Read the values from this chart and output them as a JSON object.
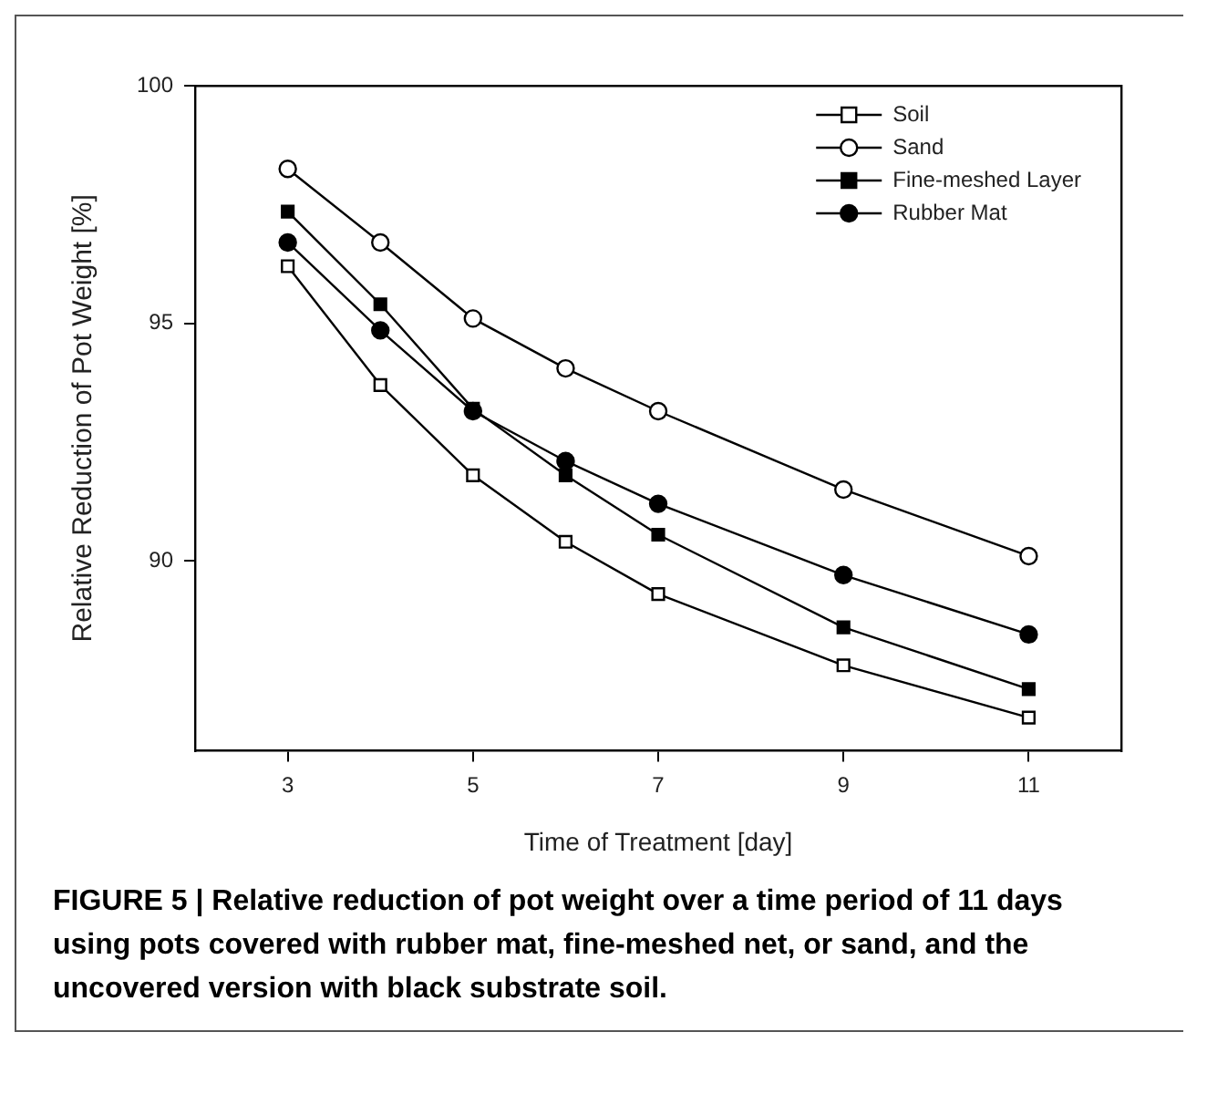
{
  "chart_data": {
    "type": "line",
    "xlabel": "Time of Treatment [day]",
    "ylabel": "Relative Reduction of Pot Weight [%]",
    "annotations": [
      "FIGURE 5 | Relative reduction of pot weight over a time period of 11 days using pots covered with rubber mat, fine-meshed net, or sand, and the uncovered version with black substrate soil."
    ],
    "x": [
      3,
      4,
      5,
      6,
      7,
      9,
      11
    ],
    "xlim": [
      2,
      12
    ],
    "xticks": [
      3,
      5,
      7,
      9,
      11
    ],
    "ylim": [
      86,
      100
    ],
    "yticks": [
      90,
      95,
      100
    ],
    "grid": false,
    "legend": "top right",
    "line_style": "solid",
    "series": [
      {
        "name": "Soil",
        "color": "#000000",
        "marker": "square",
        "values": [
          96.2,
          93.7,
          91.8,
          90.4,
          89.3,
          87.8,
          86.7
        ]
      },
      {
        "name": "Sand",
        "color": "#000000",
        "marker": "circle",
        "values": [
          98.25,
          96.7,
          95.1,
          94.05,
          93.15,
          91.5,
          90.1
        ]
      },
      {
        "name": "Fine-meshed Layer",
        "color": "#000000",
        "marker": "square",
        "values": [
          97.35,
          95.4,
          93.2,
          91.8,
          90.55,
          88.6,
          87.3
        ]
      },
      {
        "name": "Rubber Mat",
        "color": "#000000",
        "marker": "circle",
        "values": [
          96.7,
          94.85,
          93.15,
          92.1,
          91.2,
          89.7,
          88.45
        ]
      }
    ]
  }
}
